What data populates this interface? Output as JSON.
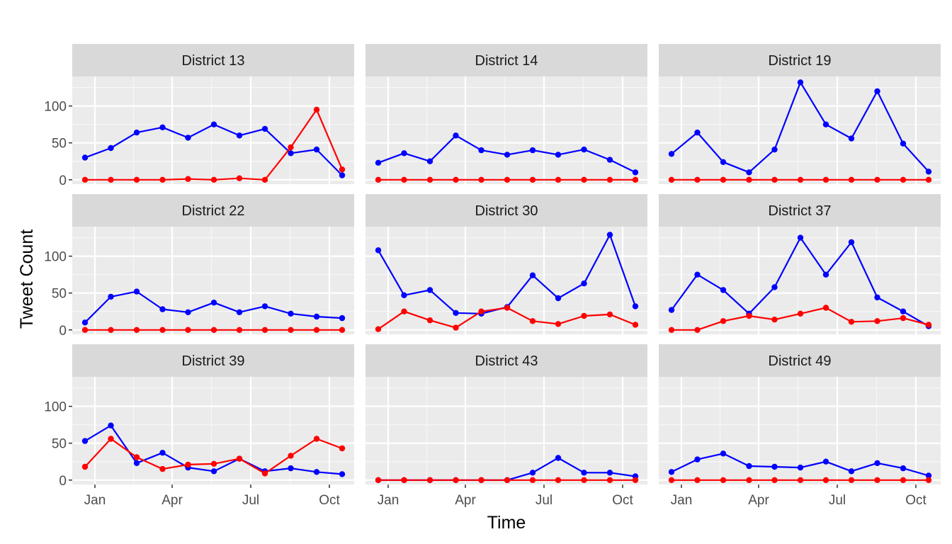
{
  "chart_data": {
    "type": "line",
    "xlabel": "Time",
    "ylabel": "Tweet Count",
    "ylim": [
      -6,
      140
    ],
    "y_ticks": [
      0,
      50,
      100
    ],
    "x_ticks": [
      "Jan",
      "Apr",
      "Jul",
      "Oct"
    ],
    "x_months": [
      "2019-12",
      "2020-01",
      "2020-02",
      "2020-03",
      "2020-04",
      "2020-05",
      "2020-06",
      "2020-07",
      "2020-08",
      "2020-09",
      "2020-10"
    ],
    "colors": {
      "series_a": "#0000ff",
      "series_b": "#ff0000"
    },
    "panels": [
      {
        "title": "District 13",
        "series": [
          {
            "color": "#0000ff",
            "values": [
              30,
              43,
              64,
              71,
              57,
              75,
              60,
              69,
              36,
              41,
              6
            ]
          },
          {
            "color": "#ff0000",
            "values": [
              0,
              0,
              0,
              0,
              1,
              0,
              2,
              0,
              44,
              95,
              14
            ]
          }
        ]
      },
      {
        "title": "District 14",
        "series": [
          {
            "color": "#0000ff",
            "values": [
              23,
              36,
              25,
              60,
              40,
              34,
              40,
              34,
              41,
              27,
              10
            ]
          },
          {
            "color": "#ff0000",
            "values": [
              0,
              0,
              0,
              0,
              0,
              0,
              0,
              0,
              0,
              0,
              0
            ]
          }
        ]
      },
      {
        "title": "District 19",
        "series": [
          {
            "color": "#0000ff",
            "values": [
              35,
              64,
              24,
              10,
              41,
              132,
              75,
              56,
              120,
              49,
              11
            ]
          },
          {
            "color": "#ff0000",
            "values": [
              0,
              0,
              0,
              0,
              0,
              0,
              0,
              0,
              0,
              0,
              0
            ]
          }
        ]
      },
      {
        "title": "District 22",
        "series": [
          {
            "color": "#0000ff",
            "values": [
              10,
              45,
              52,
              28,
              24,
              37,
              24,
              32,
              22,
              18,
              16
            ]
          },
          {
            "color": "#ff0000",
            "values": [
              0,
              0,
              0,
              0,
              0,
              0,
              0,
              0,
              0,
              0,
              0
            ]
          }
        ]
      },
      {
        "title": "District 30",
        "series": [
          {
            "color": "#0000ff",
            "values": [
              108,
              47,
              54,
              23,
              22,
              31,
              74,
              43,
              63,
              129,
              32
            ]
          },
          {
            "color": "#ff0000",
            "values": [
              1,
              25,
              13,
              3,
              25,
              30,
              12,
              8,
              19,
              21,
              7
            ]
          }
        ]
      },
      {
        "title": "District 37",
        "series": [
          {
            "color": "#0000ff",
            "values": [
              27,
              75,
              54,
              22,
              58,
              125,
              75,
              119,
              44,
              25,
              5
            ]
          },
          {
            "color": "#ff0000",
            "values": [
              0,
              0,
              12,
              19,
              14,
              22,
              30,
              11,
              12,
              16,
              7
            ]
          }
        ]
      },
      {
        "title": "District 39",
        "series": [
          {
            "color": "#0000ff",
            "values": [
              53,
              74,
              23,
              37,
              17,
              12,
              29,
              12,
              16,
              11,
              8
            ]
          },
          {
            "color": "#ff0000",
            "values": [
              18,
              56,
              31,
              15,
              21,
              22,
              29,
              9,
              33,
              56,
              43
            ]
          }
        ]
      },
      {
        "title": "District 43",
        "series": [
          {
            "color": "#0000ff",
            "values": [
              0,
              0,
              0,
              0,
              0,
              0,
              10,
              30,
              10,
              10,
              5
            ]
          },
          {
            "color": "#ff0000",
            "values": [
              0,
              0,
              0,
              0,
              0,
              0,
              0,
              0,
              0,
              0,
              0
            ]
          }
        ]
      },
      {
        "title": "District 49",
        "series": [
          {
            "color": "#0000ff",
            "values": [
              11,
              28,
              36,
              19,
              18,
              17,
              25,
              12,
              23,
              16,
              6
            ]
          },
          {
            "color": "#ff0000",
            "values": [
              0,
              0,
              0,
              0,
              0,
              0,
              0,
              0,
              0,
              0,
              0
            ]
          }
        ]
      }
    ]
  }
}
